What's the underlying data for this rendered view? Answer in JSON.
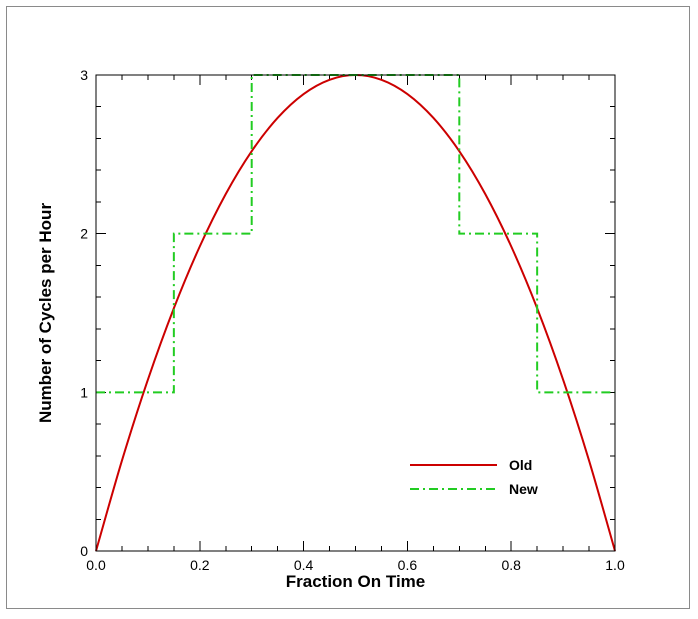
{
  "chart_data": {
    "type": "line",
    "title": "",
    "xlabel": "Fraction On Time",
    "ylabel": "Number of Cycles per Hour",
    "xlim": [
      0.0,
      1.0
    ],
    "ylim": [
      0,
      3
    ],
    "x_ticks": [
      0.0,
      0.2,
      0.4,
      0.6,
      0.8,
      1.0
    ],
    "x_tick_labels": [
      "0.0",
      "0.2",
      "0.4",
      "0.6",
      "0.8",
      "1.0"
    ],
    "y_ticks": [
      0,
      1,
      2,
      3
    ],
    "y_tick_labels": [
      "0",
      "1",
      "2",
      "3"
    ],
    "grid": false,
    "legend_position": "lower-right",
    "series": [
      {
        "name": "Old",
        "style": "solid",
        "color": "#cc0000",
        "x": [
          0.0,
          0.05,
          0.1,
          0.15,
          0.2,
          0.25,
          0.3,
          0.35,
          0.4,
          0.45,
          0.5,
          0.55,
          0.6,
          0.65,
          0.7,
          0.75,
          0.8,
          0.85,
          0.9,
          0.95,
          1.0
        ],
        "y": [
          0.0,
          0.57,
          1.08,
          1.53,
          1.92,
          2.25,
          2.52,
          2.73,
          2.88,
          2.97,
          3.0,
          2.97,
          2.88,
          2.73,
          2.52,
          2.25,
          1.92,
          1.53,
          1.08,
          0.57,
          0.0
        ]
      },
      {
        "name": "New",
        "style": "dash-dot",
        "color": "#22cc22",
        "x": [
          0.0,
          0.15,
          0.15,
          0.3,
          0.3,
          0.7,
          0.7,
          0.85,
          0.85,
          1.0
        ],
        "y": [
          1,
          1,
          2,
          2,
          3,
          3,
          2,
          2,
          1,
          1
        ]
      }
    ]
  }
}
